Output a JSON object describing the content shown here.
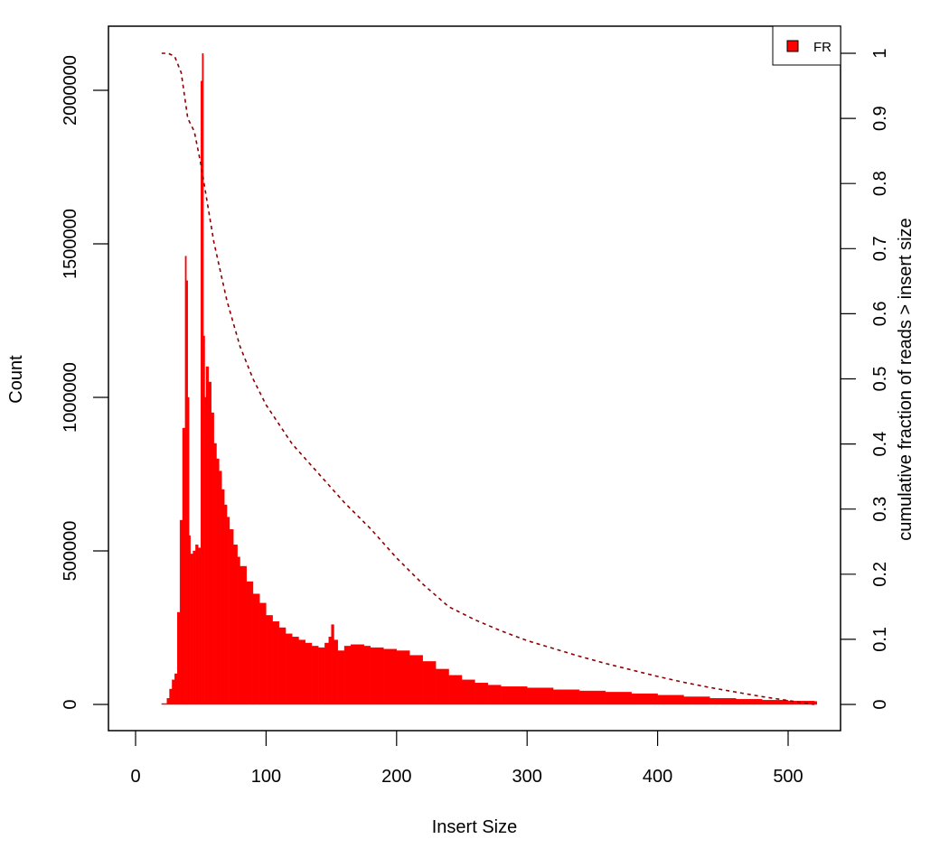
{
  "chart_data": {
    "type": "bar",
    "xlabel": "Insert Size",
    "ylabel": "Count",
    "y2label": "cumulative fraction of reads > insert size",
    "xlim": [
      0,
      540
    ],
    "ylim": [
      0,
      2150000
    ],
    "y2lim": [
      0,
      1
    ],
    "x_ticks": [
      "0",
      "100",
      "200",
      "300",
      "400",
      "500"
    ],
    "y_ticks": [
      "0",
      "500000",
      "1000000",
      "1500000",
      "2000000"
    ],
    "y2_ticks": [
      "0",
      "0.1",
      "0.2",
      "0.3",
      "0.4",
      "0.5",
      "0.6",
      "0.7",
      "0.8",
      "0.9",
      "1"
    ],
    "grid": false,
    "legend": {
      "position": "top-right",
      "entries": [
        {
          "name": "FR",
          "color": "#ff0000"
        }
      ]
    },
    "colors": {
      "bars": "#ff0000",
      "cumulative_line": "#8b0000"
    },
    "series": [
      {
        "name": "FR",
        "type": "bar",
        "x": [
          20,
          24,
          26,
          28,
          30,
          32,
          34,
          36,
          38,
          39,
          40,
          41,
          42,
          44,
          46,
          48,
          50,
          51,
          52,
          53,
          54,
          56,
          58,
          60,
          62,
          64,
          66,
          68,
          70,
          72,
          75,
          78,
          80,
          85,
          90,
          95,
          100,
          105,
          110,
          115,
          120,
          125,
          130,
          135,
          140,
          145,
          148,
          150,
          152,
          155,
          160,
          165,
          170,
          175,
          180,
          190,
          200,
          210,
          220,
          230,
          240,
          250,
          260,
          270,
          280,
          300,
          320,
          340,
          360,
          380,
          400,
          420,
          440,
          460,
          480,
          500,
          520
        ],
        "values": [
          3000,
          20000,
          50000,
          80000,
          100000,
          300000,
          600000,
          900000,
          1460000,
          1380000,
          1000000,
          550000,
          490000,
          500000,
          520000,
          510000,
          2030000,
          2120000,
          1200000,
          1000000,
          1100000,
          1050000,
          950000,
          850000,
          800000,
          760000,
          700000,
          650000,
          610000,
          570000,
          520000,
          480000,
          450000,
          400000,
          360000,
          330000,
          290000,
          270000,
          250000,
          230000,
          220000,
          210000,
          200000,
          190000,
          185000,
          200000,
          220000,
          260000,
          210000,
          175000,
          190000,
          195000,
          195000,
          190000,
          185000,
          180000,
          175000,
          160000,
          140000,
          115000,
          95000,
          80000,
          70000,
          63000,
          58000,
          54000,
          48000,
          44000,
          40000,
          35000,
          30000,
          25000,
          20000,
          17000,
          14000,
          11000,
          10000
        ]
      },
      {
        "name": "cumulative",
        "type": "line",
        "axis": "right",
        "x": [
          20,
          25,
          30,
          35,
          40,
          45,
          50,
          55,
          60,
          70,
          80,
          90,
          100,
          120,
          140,
          160,
          180,
          200,
          220,
          240,
          260,
          280,
          300,
          320,
          340,
          360,
          380,
          400,
          420,
          440,
          460,
          480,
          500,
          520
        ],
        "values": [
          1.0,
          1.0,
          0.995,
          0.97,
          0.9,
          0.88,
          0.83,
          0.77,
          0.71,
          0.62,
          0.55,
          0.5,
          0.46,
          0.4,
          0.355,
          0.31,
          0.27,
          0.225,
          0.185,
          0.15,
          0.13,
          0.113,
          0.098,
          0.086,
          0.074,
          0.063,
          0.053,
          0.043,
          0.034,
          0.026,
          0.019,
          0.012,
          0.006,
          0.0
        ]
      }
    ]
  }
}
